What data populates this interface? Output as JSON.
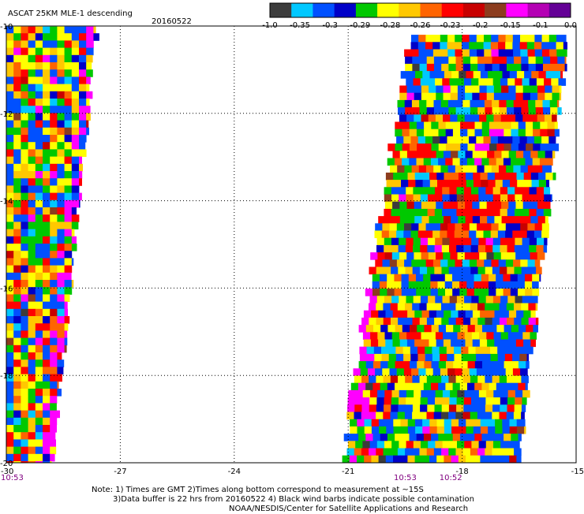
{
  "title": "ASCAT 25KM MLE-1 descending",
  "date": "20160522",
  "colorbar": {
    "colors": [
      "#3c3c3c",
      "#00c8ff",
      "#0050ff",
      "#0000c8",
      "#00c800",
      "#ffff00",
      "#ffc800",
      "#ff6400",
      "#ff0000",
      "#c80000",
      "#8c3c1e",
      "#ff00ff",
      "#b400b4",
      "#640096"
    ],
    "tick_labels": [
      "-1.0",
      "-0.35",
      "-0.3",
      "-0.29",
      "-0.28",
      "-0.26",
      "-0.23",
      "-0.2",
      "-0.15",
      "-0.1",
      "0.0"
    ]
  },
  "axes": {
    "x_range": [
      -30,
      -15
    ],
    "y_range": [
      -20,
      -10
    ],
    "x_ticks": [
      "-30",
      "-27",
      "-24",
      "-21",
      "-18",
      "-15"
    ],
    "y_ticks": [
      "-10",
      "-12",
      "-14",
      "-16",
      "-18",
      "-20"
    ],
    "grid": "dotted"
  },
  "swaths": [
    {
      "name": "west",
      "lat_top": -10.0,
      "lat_bottom": -20.0,
      "lon_left": -30.0,
      "lon_right_top": -27.6,
      "lon_right_bottom": -28.8
    },
    {
      "name": "east",
      "lat_top": -10.2,
      "lat_bottom": -20.0,
      "lon_left_top": -19.4,
      "lon_left_bottom": -21.2,
      "lon_right_top": -15.2,
      "lon_right_bottom": -16.5
    }
  ],
  "times": [
    {
      "label": "10:53",
      "lon": -30.0
    },
    {
      "label": "10:53",
      "lon": -19.5
    },
    {
      "label": "10:52",
      "lon": -18.3
    }
  ],
  "notes": {
    "line1": "Note: 1) Times are GMT 2)Times along bottom correspond to measurement at ~15S",
    "line2": "3)Data buffer is 22 hrs from 20160522 4) Black wind barbs indicate possible contamination",
    "line3": "NOAA/NESDIS/Center for Satellite Applications and Research"
  }
}
